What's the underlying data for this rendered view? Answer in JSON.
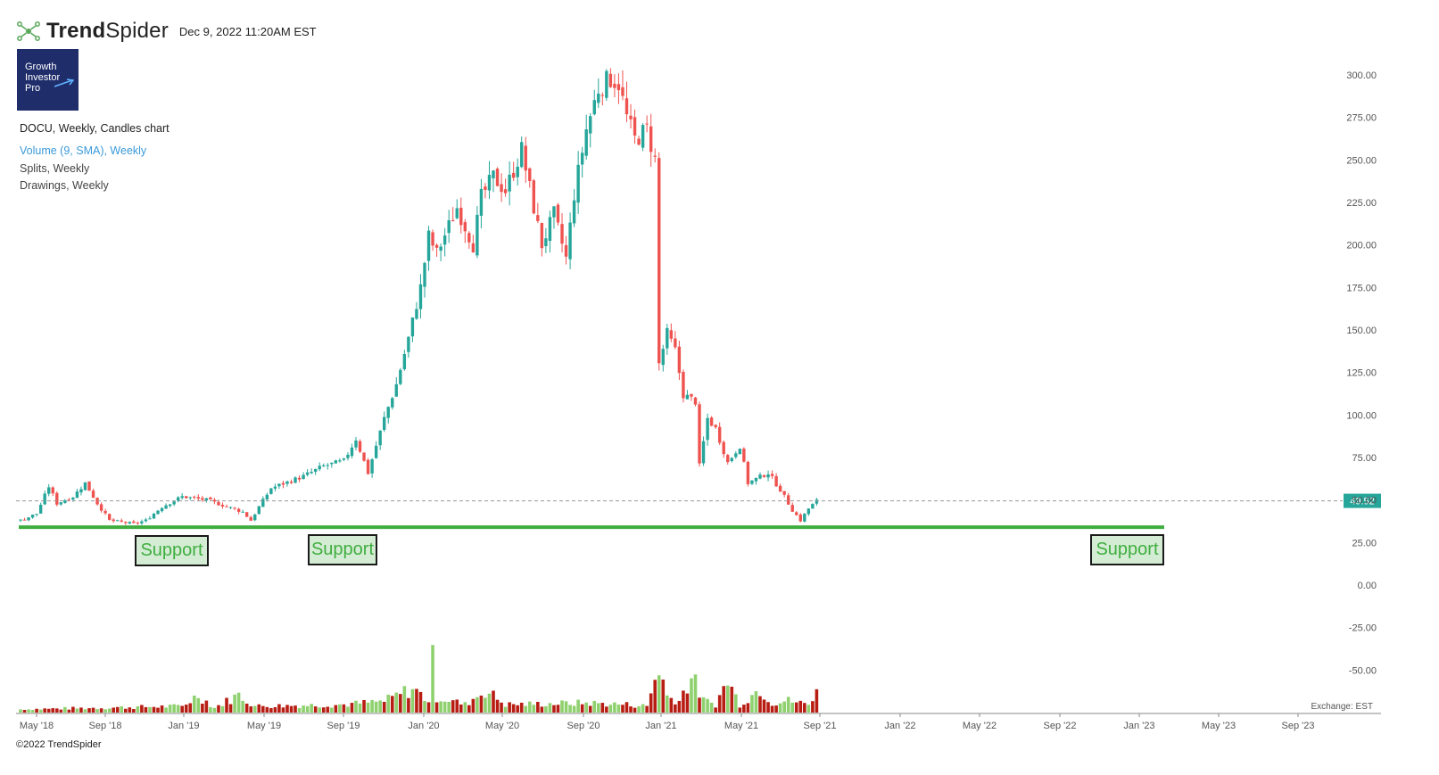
{
  "header": {
    "brand_bold": "Trend",
    "brand_light": "Spider",
    "timestamp": "Dec 9, 2022 11:20AM EST"
  },
  "logo": {
    "line1": "Growth",
    "line2": "Investor",
    "line3": "Pro"
  },
  "legend": {
    "chart_title": "DOCU, Weekly, Candles chart",
    "volume": "Volume (9, SMA), Weekly",
    "splits": "Splits, Weekly",
    "drawings": "Drawings, Weekly"
  },
  "footer": {
    "copyright": "©2022 TrendSpider",
    "exchange": "Exchange: EST"
  },
  "colors": {
    "up": "#26a69a",
    "down": "#ef5350",
    "vol_up": "#8fd16f",
    "vol_down": "#b81d13",
    "support_line": "#3fae3f",
    "price_tag": "#26a69a"
  },
  "chart_data": {
    "type": "candlestick",
    "title": "DOCU, Weekly, Candles chart",
    "last_price": "49.52",
    "y_ticks": [
      "300.00",
      "275.00",
      "250.00",
      "225.00",
      "200.00",
      "175.00",
      "150.00",
      "125.00",
      "100.00",
      "75.00",
      "50.00",
      "25.00",
      "0.00",
      "-25.00",
      "-50.00"
    ],
    "y_tick_values": [
      300,
      275,
      250,
      225,
      200,
      175,
      150,
      125,
      100,
      75,
      50,
      25,
      0,
      -25,
      -50
    ],
    "x_ticks": [
      "May '18",
      "Sep '18",
      "Jan '19",
      "May '19",
      "Sep '19",
      "Jan '20",
      "May '20",
      "Sep '20",
      "Jan '21",
      "May '21",
      "Sep '21",
      "Jan '22",
      "May '22",
      "Sep '22",
      "Jan '23",
      "May '23",
      "Sep '23"
    ],
    "support_level": 34,
    "support_labels": [
      "Support",
      "Support",
      "Support"
    ],
    "price_keyframes": [
      [
        0,
        38
      ],
      [
        4,
        42
      ],
      [
        7,
        58
      ],
      [
        9,
        48
      ],
      [
        13,
        52
      ],
      [
        16,
        60
      ],
      [
        19,
        48
      ],
      [
        22,
        38
      ],
      [
        28,
        36
      ],
      [
        31,
        38
      ],
      [
        35,
        46
      ],
      [
        40,
        52
      ],
      [
        46,
        50
      ],
      [
        50,
        47
      ],
      [
        55,
        43
      ],
      [
        57,
        38
      ],
      [
        59,
        46
      ],
      [
        62,
        57
      ],
      [
        70,
        64
      ],
      [
        75,
        70
      ],
      [
        80,
        73
      ],
      [
        83,
        86
      ],
      [
        86,
        66
      ],
      [
        90,
        98
      ],
      [
        93,
        118
      ],
      [
        96,
        145
      ],
      [
        99,
        175
      ],
      [
        101,
        205
      ],
      [
        103,
        195
      ],
      [
        108,
        222
      ],
      [
        112,
        200
      ],
      [
        114,
        228
      ],
      [
        117,
        240
      ],
      [
        120,
        232
      ],
      [
        124,
        256
      ],
      [
        127,
        222
      ],
      [
        129,
        200
      ],
      [
        132,
        218
      ],
      [
        135,
        192
      ],
      [
        137,
        230
      ],
      [
        140,
        268
      ],
      [
        143,
        292
      ],
      [
        146,
        298
      ],
      [
        148,
        295
      ],
      [
        150,
        275
      ],
      [
        152,
        262
      ],
      [
        155,
        268
      ],
      [
        157,
        250
      ],
      [
        158,
        130
      ],
      [
        160,
        148
      ],
      [
        162,
        138
      ],
      [
        164,
        112
      ],
      [
        167,
        108
      ],
      [
        168,
        70
      ],
      [
        170,
        98
      ],
      [
        172,
        92
      ],
      [
        175,
        72
      ],
      [
        178,
        82
      ],
      [
        180,
        60
      ],
      [
        185,
        66
      ],
      [
        188,
        56
      ],
      [
        191,
        44
      ],
      [
        193,
        38
      ],
      [
        195,
        45
      ],
      [
        197,
        49.5
      ]
    ],
    "volume_keyframes": [
      [
        0,
        4
      ],
      [
        20,
        6
      ],
      [
        40,
        8
      ],
      [
        44,
        22
      ],
      [
        48,
        6
      ],
      [
        54,
        22
      ],
      [
        58,
        8
      ],
      [
        80,
        10
      ],
      [
        90,
        14
      ],
      [
        97,
        30
      ],
      [
        101,
        15
      ],
      [
        102,
        62
      ],
      [
        103,
        20
      ],
      [
        110,
        10
      ],
      [
        115,
        28
      ],
      [
        120,
        10
      ],
      [
        140,
        12
      ],
      [
        150,
        10
      ],
      [
        155,
        8
      ],
      [
        158,
        58
      ],
      [
        160,
        20
      ],
      [
        163,
        15
      ],
      [
        166,
        45
      ],
      [
        169,
        15
      ],
      [
        172,
        10
      ],
      [
        175,
        40
      ],
      [
        178,
        10
      ],
      [
        183,
        30
      ],
      [
        186,
        12
      ],
      [
        190,
        15
      ],
      [
        193,
        12
      ],
      [
        195,
        10
      ],
      [
        197,
        31
      ]
    ]
  }
}
